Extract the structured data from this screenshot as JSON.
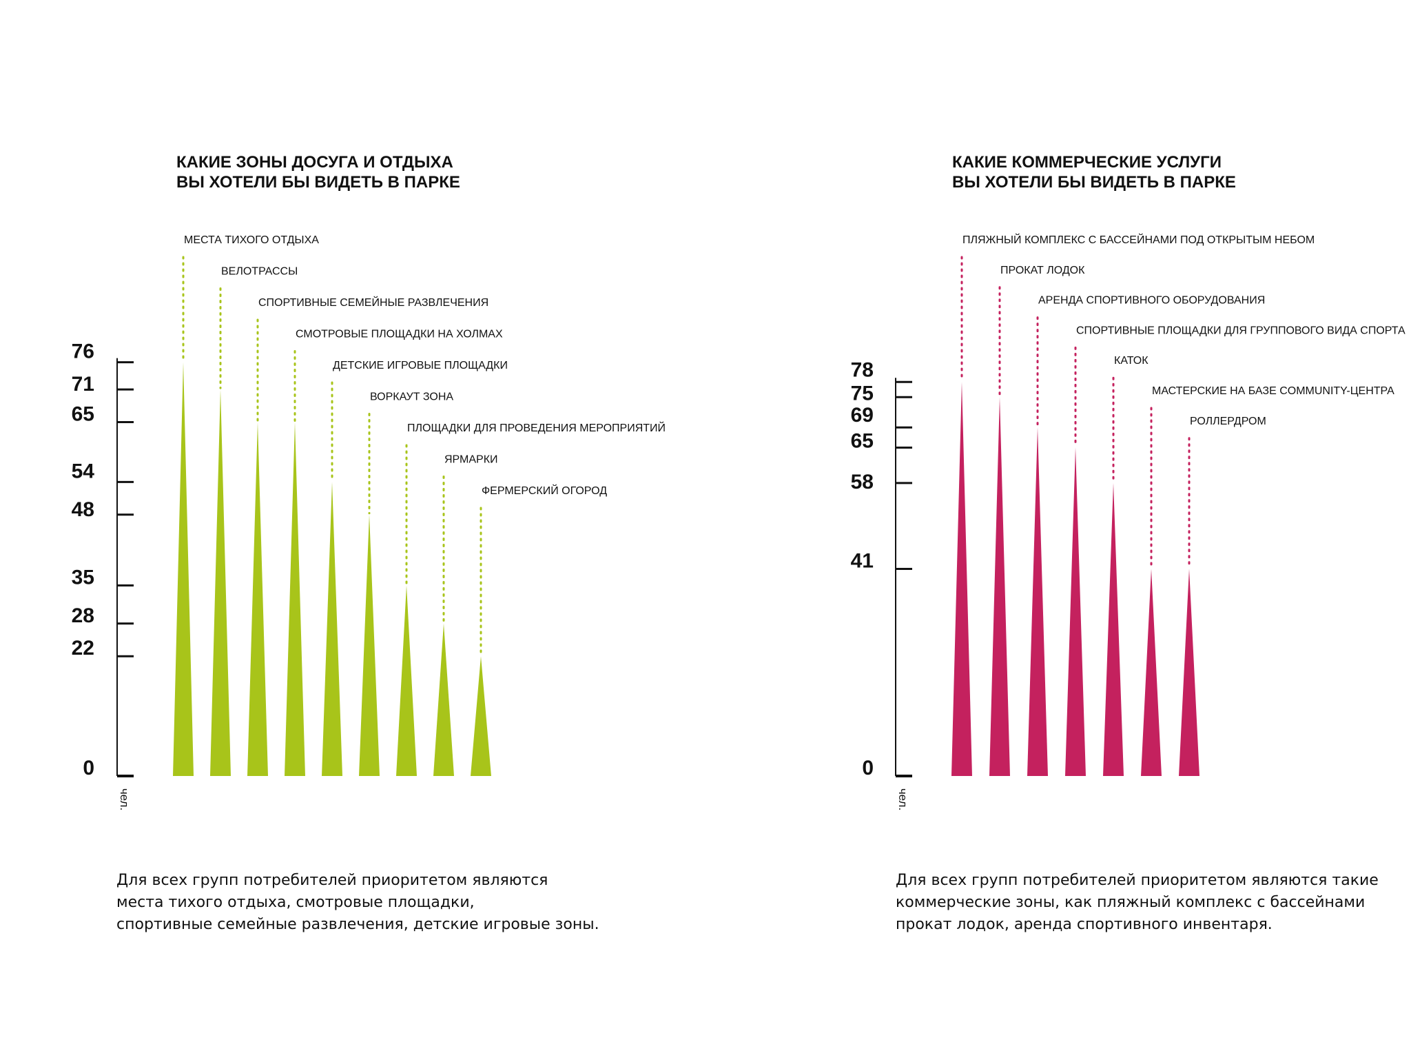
{
  "chart_data": [
    {
      "type": "bar",
      "title_lines": [
        "КАКИЕ ЗОНЫ ДОСУГА И ОТДЫХА",
        "ВЫ ХОТЕЛИ БЫ ВИДЕТЬ В ПАРКЕ"
      ],
      "categories": [
        "МЕСТА ТИХОГО ОТДЫХА",
        "ВЕЛОТРАССЫ",
        "СПОРТИВНЫЕ СЕМЕЙНЫЕ РАЗВЛЕЧЕНИЯ",
        "СМОТРОВЫЕ ПЛОЩАДКИ НА ХОЛМАХ",
        "ДЕТСКИЕ ИГРОВЫЕ ПЛОЩАДКИ",
        "ВОРКАУТ ЗОНА",
        "ПЛОЩАДКИ ДЛЯ ПРОВЕДЕНИЯ МЕРОПРИЯТИЙ",
        "ЯРМАРКИ",
        "ФЕРМЕРСКИЙ ОГОРОД"
      ],
      "values": [
        76,
        71,
        65,
        65,
        54,
        48,
        35,
        28,
        22
      ],
      "yticks": [
        0,
        22,
        28,
        35,
        48,
        54,
        65,
        71,
        76
      ],
      "ylabel": "чел.",
      "ylim": [
        0,
        76
      ],
      "color": "#a8c41a",
      "mark_shape": "triangle",
      "caption_lines": [
        "Для всех групп потребителей приоритетом являются",
        "места тихого отдыха, смотровые площадки,",
        "спортивные семейные развлечения, детские игровые зоны."
      ]
    },
    {
      "type": "bar",
      "title_lines": [
        "КАКИЕ КОММЕРЧЕСКИЕ УСЛУГИ",
        "ВЫ ХОТЕЛИ БЫ ВИДЕТЬ В ПАРКЕ"
      ],
      "categories": [
        "ПЛЯЖНЫЙ КОМПЛЕКС С БАССЕЙНАМИ ПОД ОТКРЫТЫМ НЕБОМ",
        "ПРОКАТ ЛОДОК",
        "АРЕНДА СПОРТИВНОГО ОБОРУДОВАНИЯ",
        "СПОРТИВНЫЕ ПЛОЩАДКИ ДЛЯ ГРУППОВОГО ВИДА СПОРТА",
        "КАТОК",
        "МАСТЕРСКИЕ НА БАЗЕ COMMUNITY-ЦЕНТРА",
        "РОЛЛЕРДРОМ"
      ],
      "values": [
        78,
        75,
        69,
        65,
        58,
        41,
        41
      ],
      "yticks": [
        0,
        41,
        58,
        65,
        69,
        75,
        78
      ],
      "ylabel": "чел.",
      "ylim": [
        0,
        78
      ],
      "color": "#c4215e",
      "mark_shape": "triangle",
      "caption_lines": [
        "Для всех групп потребителей приоритетом являются такие",
        "коммерческие зоны, как пляжный комплекс с бассейнами",
        "прокат лодок, аренда спортивного инвентаря."
      ]
    }
  ]
}
